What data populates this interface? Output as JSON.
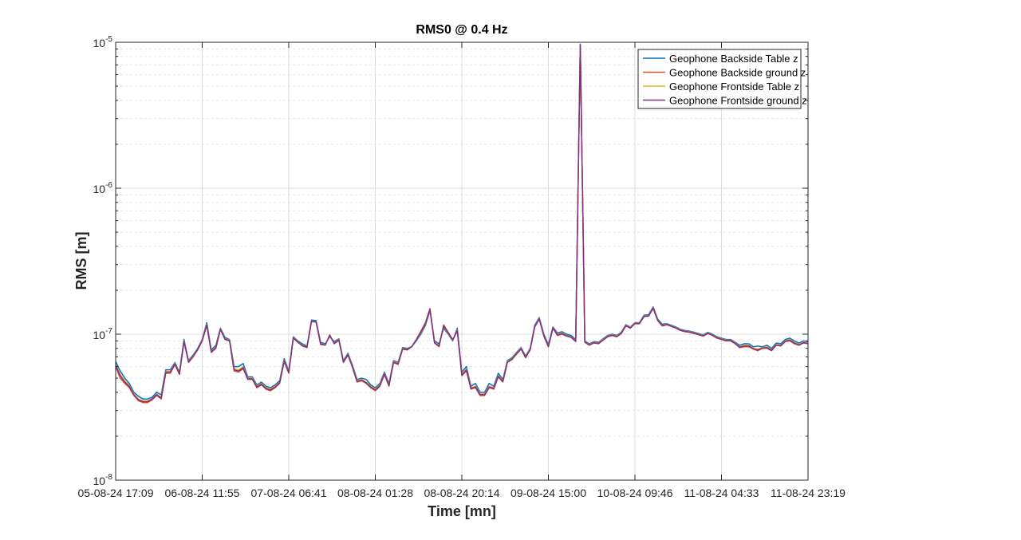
{
  "chart_data": {
    "type": "line",
    "title": "RMS0 @ 0.4 Hz",
    "xlabel": "Time [mn]",
    "ylabel": "RMS [m]",
    "yscale": "log",
    "ylim": [
      1e-08,
      1e-05
    ],
    "yticks": [
      {
        "base": "10",
        "exp": "-8",
        "value": 1e-08
      },
      {
        "base": "10",
        "exp": "-7",
        "value": 1e-07
      },
      {
        "base": "10",
        "exp": "-6",
        "value": 1e-06
      },
      {
        "base": "10",
        "exp": "-5",
        "value": 1e-05
      }
    ],
    "xlim": [
      0,
      160
    ],
    "xticks": [
      {
        "label": "05-08-24  17:09",
        "value": 0
      },
      {
        "label": "06-08-24  11:55",
        "value": 20
      },
      {
        "label": "07-08-24  06:41",
        "value": 40
      },
      {
        "label": "08-08-24  01:28",
        "value": 60
      },
      {
        "label": "08-08-24  20:14",
        "value": 80
      },
      {
        "label": "09-08-24  15:00",
        "value": 100
      },
      {
        "label": "10-08-24  09:46",
        "value": 120
      },
      {
        "label": "11-08-24  04:33",
        "value": 140
      },
      {
        "label": "11-08-24  23:19",
        "value": 160
      }
    ],
    "grid": true,
    "legend_position": "top-right",
    "colors": [
      "#0072BD",
      "#D95319",
      "#EDB120",
      "#7E2F8E"
    ],
    "series": [
      {
        "name": "Geophone Backside Table z",
        "values": [
          6.5e-08,
          5.6e-08,
          5e-08,
          4.6e-08,
          4e-08,
          3.75e-08,
          3.6e-08,
          3.6e-08,
          3.7e-08,
          4e-08,
          3.85e-08,
          5.7e-08,
          5.7e-08,
          6.4e-08,
          5.5e-08,
          9.2e-08,
          6.6e-08,
          7.2e-08,
          8e-08,
          9.2e-08,
          1.2e-07,
          7.8e-08,
          8.4e-08,
          1.1e-07,
          9.5e-08,
          9.2e-08,
          6e-08,
          6e-08,
          6.3e-08,
          5.1e-08,
          5.1e-08,
          4.5e-08,
          4.7e-08,
          4.4e-08,
          4.3e-08,
          4.5e-08,
          4.8e-08,
          6.8e-08,
          5.6e-08,
          9.6e-08,
          9e-08,
          8.6e-08,
          8.3e-08,
          1.25e-07,
          1.24e-07,
          8.8e-08,
          8.6e-08,
          9.6e-08,
          8.9e-08,
          9.3e-08,
          6.6e-08,
          7.4e-08,
          6.1e-08,
          4.9e-08,
          5e-08,
          4.9e-08,
          4.5e-08,
          4.3e-08,
          4.6e-08,
          5.5e-08,
          4.6e-08,
          6.6e-08,
          6.4e-08,
          8.1e-08,
          8e-08,
          8.2e-08,
          9e-08,
          1e-07,
          1.15e-07,
          1.45e-07,
          9e-08,
          8.6e-08,
          1.1e-07,
          1e-07,
          9e-08,
          1.1e-07,
          5.5e-08,
          6e-08,
          4.4e-08,
          4.6e-08,
          4e-08,
          4e-08,
          4.6e-08,
          4.4e-08,
          5.4e-08,
          4.9e-08,
          6.6e-08,
          6.9e-08,
          7.5e-08,
          8.1e-08,
          7.1e-08,
          8e-08,
          1.15e-07,
          1.3e-07,
          1e-07,
          8.5e-08,
          1.12e-07,
          1.02e-07,
          1.04e-07,
          1e-07,
          9.8e-08,
          9.2e-08,
          9.7e-06,
          9e-08,
          8.6e-08,
          8.9e-08,
          8.8e-08,
          9.3e-08,
          9.8e-08,
          1e-07,
          9.8e-08,
          1.03e-07,
          1.16e-07,
          1.12e-07,
          1.2e-07,
          1.2e-07,
          1.35e-07,
          1.36e-07,
          1.54e-07,
          1.27e-07,
          1.17e-07,
          1.18e-07,
          1.15e-07,
          1.12e-07,
          1.08e-07,
          1.06e-07,
          1.05e-07,
          1.03e-07,
          1.01e-07,
          9.9e-08,
          1.03e-07,
          1e-07,
          9.6e-08,
          9.4e-08,
          9.2e-08,
          9.2e-08,
          8.8e-08,
          8.4e-08,
          8.6e-08,
          8.6e-08,
          8.2e-08,
          8.3e-08,
          8.2e-08,
          8.4e-08,
          8e-08,
          8.7e-08,
          8.6e-08,
          9.2e-08,
          9.4e-08,
          9e-08,
          8.7e-08,
          9e-08,
          8.9e-08
        ]
      },
      {
        "name": "Geophone Backside ground z",
        "values": [
          6e-08,
          5e-08,
          4.6e-08,
          4.3e-08,
          3.8e-08,
          3.5e-08,
          3.4e-08,
          3.4e-08,
          3.55e-08,
          3.8e-08,
          3.6e-08,
          5.4e-08,
          5.4e-08,
          6.2e-08,
          5.3e-08,
          8.9e-08,
          6.4e-08,
          7e-08,
          7.8e-08,
          9e-08,
          1.15e-07,
          7.5e-08,
          8e-08,
          1.08e-07,
          9.2e-08,
          9e-08,
          5.6e-08,
          5.5e-08,
          5.8e-08,
          4.9e-08,
          4.9e-08,
          4.3e-08,
          4.5e-08,
          4.2e-08,
          4.1e-08,
          4.3e-08,
          4.6e-08,
          6.5e-08,
          5.4e-08,
          9.4e-08,
          8.8e-08,
          8.3e-08,
          8.1e-08,
          1.22e-07,
          1.21e-07,
          8.5e-08,
          8.4e-08,
          9.9e-08,
          8.6e-08,
          9.1e-08,
          6.4e-08,
          7.2e-08,
          5.9e-08,
          4.7e-08,
          4.8e-08,
          4.6e-08,
          4.3e-08,
          4.1e-08,
          4.4e-08,
          5.3e-08,
          4.4e-08,
          6.4e-08,
          6.2e-08,
          7.9e-08,
          7.8e-08,
          8.2e-08,
          9.2e-08,
          1.05e-07,
          1.2e-07,
          1.5e-07,
          8.7e-08,
          8.2e-08,
          1.16e-07,
          1.03e-07,
          9.2e-08,
          1.05e-07,
          5.2e-08,
          5.6e-08,
          4.2e-08,
          4.3e-08,
          3.8e-08,
          3.8e-08,
          4.3e-08,
          4.2e-08,
          5.1e-08,
          4.7e-08,
          6.4e-08,
          6.7e-08,
          7.3e-08,
          7.9e-08,
          6.9e-08,
          7.8e-08,
          1.12e-07,
          1.27e-07,
          9.7e-08,
          8.2e-08,
          1.1e-07,
          9.8e-08,
          1e-07,
          9.7e-08,
          9.5e-08,
          8.9e-08,
          9.5e-06,
          8.8e-08,
          8.4e-08,
          8.7e-08,
          8.6e-08,
          9.1e-08,
          9.6e-08,
          9.8e-08,
          9.6e-08,
          1.01e-07,
          1.14e-07,
          1.1e-07,
          1.18e-07,
          1.18e-07,
          1.32e-07,
          1.33e-07,
          1.5e-07,
          1.24e-07,
          1.14e-07,
          1.16e-07,
          1.13e-07,
          1.1e-07,
          1.06e-07,
          1.04e-07,
          1.03e-07,
          1.01e-07,
          9.9e-08,
          9.7e-08,
          1.01e-07,
          9.8e-08,
          9.4e-08,
          9.2e-08,
          9e-08,
          9e-08,
          8.6e-08,
          8.1e-08,
          8.2e-08,
          8.2e-08,
          7.9e-08,
          7.7e-08,
          8e-08,
          8e-08,
          7.7e-08,
          8.4e-08,
          8.3e-08,
          8.9e-08,
          9e-08,
          8.6e-08,
          8.4e-08,
          8.7e-08,
          8.6e-08
        ]
      },
      {
        "name": "Geophone Frontside Table z",
        "values": [
          6.2e-08,
          5.3e-08,
          4.8e-08,
          4.45e-08,
          3.9e-08,
          3.6e-08,
          3.5e-08,
          3.5e-08,
          3.6e-08,
          3.9e-08,
          3.7e-08,
          5.55e-08,
          5.55e-08,
          6.3e-08,
          5.4e-08,
          9e-08,
          6.5e-08,
          7.1e-08,
          7.9e-08,
          9.1e-08,
          1.17e-07,
          7.6e-08,
          8.2e-08,
          1.09e-07,
          9.3e-08,
          9.1e-08,
          5.8e-08,
          5.7e-08,
          6e-08,
          5e-08,
          5e-08,
          4.4e-08,
          4.6e-08,
          4.3e-08,
          4.2e-08,
          4.4e-08,
          4.7e-08,
          6.6e-08,
          5.5e-08,
          9.5e-08,
          8.9e-08,
          8.4e-08,
          8.2e-08,
          1.23e-07,
          1.22e-07,
          8.6e-08,
          8.5e-08,
          9.7e-08,
          8.7e-08,
          9.2e-08,
          6.5e-08,
          7.3e-08,
          6e-08,
          4.8e-08,
          4.9e-08,
          4.7e-08,
          4.4e-08,
          4.2e-08,
          4.5e-08,
          5.4e-08,
          4.5e-08,
          6.5e-08,
          6.3e-08,
          8e-08,
          7.9e-08,
          8.2e-08,
          9.1e-08,
          1.02e-07,
          1.17e-07,
          1.47e-07,
          8.8e-08,
          8.4e-08,
          1.13e-07,
          1.01e-07,
          9.1e-08,
          1.07e-07,
          5.3e-08,
          5.8e-08,
          4.3e-08,
          4.4e-08,
          3.9e-08,
          3.9e-08,
          4.4e-08,
          4.3e-08,
          5.2e-08,
          4.8e-08,
          6.5e-08,
          6.8e-08,
          7.4e-08,
          8e-08,
          7e-08,
          7.9e-08,
          1.13e-07,
          1.28e-07,
          9.8e-08,
          8.3e-08,
          1.11e-07,
          1e-07,
          1.02e-07,
          9.8e-08,
          9.6e-08,
          9e-08,
          9.6e-06,
          8.9e-08,
          8.5e-08,
          8.8e-08,
          8.7e-08,
          9.2e-08,
          9.7e-08,
          9.9e-08,
          9.7e-08,
          1.02e-07,
          1.15e-07,
          1.11e-07,
          1.19e-07,
          1.19e-07,
          1.33e-07,
          1.34e-07,
          1.52e-07,
          1.25e-07,
          1.15e-07,
          1.17e-07,
          1.14e-07,
          1.11e-07,
          1.07e-07,
          1.05e-07,
          1.04e-07,
          1.02e-07,
          1e-07,
          9.8e-08,
          1.02e-07,
          9.9e-08,
          9.5e-08,
          9.3e-08,
          9.1e-08,
          9.1e-08,
          8.7e-08,
          8.2e-08,
          8.4e-08,
          8.4e-08,
          8e-08,
          7.9e-08,
          8.1e-08,
          8.2e-08,
          7.8e-08,
          8.5e-08,
          8.4e-08,
          9e-08,
          9.2e-08,
          8.8e-08,
          8.5e-08,
          8.8e-08,
          8.7e-08
        ]
      },
      {
        "name": "Geophone Frontside ground z",
        "values": [
          6.1e-08,
          5.2e-08,
          4.7e-08,
          4.4e-08,
          3.85e-08,
          3.55e-08,
          3.45e-08,
          3.45e-08,
          3.6e-08,
          3.85e-08,
          3.65e-08,
          5.5e-08,
          5.5e-08,
          6.25e-08,
          5.35e-08,
          8.95e-08,
          6.45e-08,
          7.05e-08,
          7.85e-08,
          9.05e-08,
          1.16e-07,
          7.55e-08,
          8.1e-08,
          1.085e-07,
          9.25e-08,
          9.05e-08,
          5.7e-08,
          5.6e-08,
          5.9e-08,
          4.95e-08,
          4.95e-08,
          4.35e-08,
          4.55e-08,
          4.25e-08,
          4.15e-08,
          4.35e-08,
          4.65e-08,
          6.55e-08,
          5.45e-08,
          9.45e-08,
          8.85e-08,
          8.35e-08,
          8.15e-08,
          1.225e-07,
          1.215e-07,
          8.55e-08,
          8.45e-08,
          9.8e-08,
          8.65e-08,
          9.15e-08,
          6.45e-08,
          7.25e-08,
          5.95e-08,
          4.75e-08,
          4.85e-08,
          4.65e-08,
          4.35e-08,
          4.15e-08,
          4.45e-08,
          5.35e-08,
          4.45e-08,
          6.45e-08,
          6.25e-08,
          7.95e-08,
          7.85e-08,
          8.2e-08,
          9.15e-08,
          1.03e-07,
          1.18e-07,
          1.48e-07,
          8.75e-08,
          8.3e-08,
          1.14e-07,
          1.02e-07,
          9.15e-08,
          1.06e-07,
          5.25e-08,
          5.7e-08,
          4.25e-08,
          4.35e-08,
          3.85e-08,
          3.85e-08,
          4.35e-08,
          4.25e-08,
          5.15e-08,
          4.75e-08,
          6.45e-08,
          6.75e-08,
          7.35e-08,
          7.95e-08,
          6.95e-08,
          7.85e-08,
          1.125e-07,
          1.275e-07,
          9.75e-08,
          8.25e-08,
          1.105e-07,
          9.9e-08,
          1.01e-07,
          9.75e-08,
          9.55e-08,
          8.95e-08,
          9.6e-06,
          8.85e-08,
          8.45e-08,
          8.75e-08,
          8.65e-08,
          9.15e-08,
          9.65e-08,
          9.85e-08,
          9.65e-08,
          1.015e-07,
          1.145e-07,
          1.105e-07,
          1.185e-07,
          1.185e-07,
          1.325e-07,
          1.335e-07,
          1.51e-07,
          1.245e-07,
          1.145e-07,
          1.165e-07,
          1.135e-07,
          1.105e-07,
          1.065e-07,
          1.045e-07,
          1.035e-07,
          1.015e-07,
          9.95e-08,
          9.75e-08,
          1.015e-07,
          9.85e-08,
          9.45e-08,
          9.25e-08,
          9.05e-08,
          9.05e-08,
          8.65e-08,
          8.15e-08,
          8.3e-08,
          8.3e-08,
          7.95e-08,
          7.8e-08,
          8.05e-08,
          8.1e-08,
          7.75e-08,
          8.45e-08,
          8.35e-08,
          8.95e-08,
          9.1e-08,
          8.7e-08,
          8.45e-08,
          8.75e-08,
          8.65e-08
        ]
      }
    ]
  }
}
